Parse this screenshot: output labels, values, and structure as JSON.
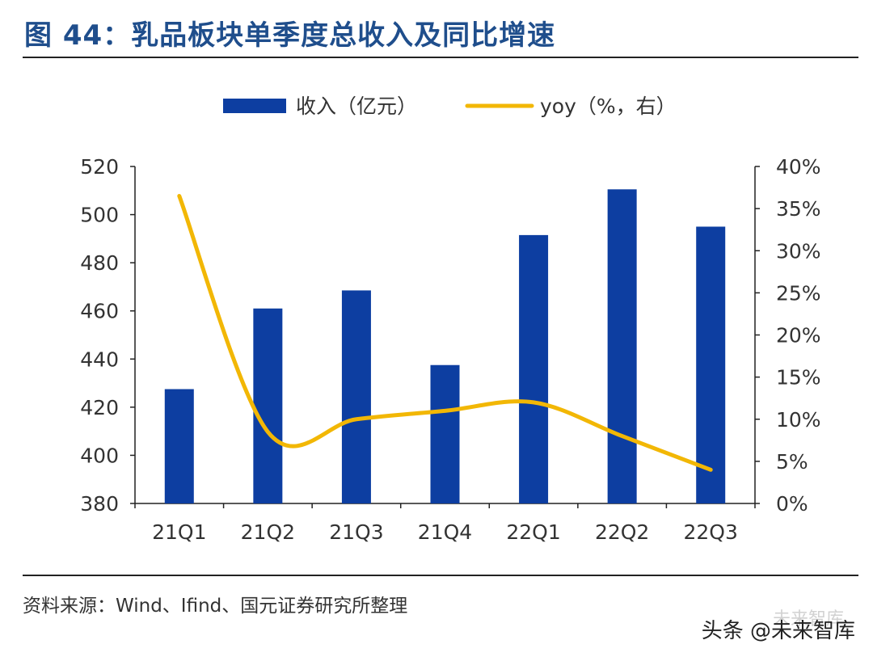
{
  "figure": {
    "title": "图 44：乳品板块单季度总收入及同比增速",
    "source": "资料来源：Wind、Ifind、国元证券研究所整理",
    "watermark_main": "头条 @未来智库",
    "watermark_faint": "未来智库"
  },
  "colors": {
    "bar": "#0d3ea1",
    "line": "#f2b705",
    "title": "#1f4e8c",
    "axis": "#222222"
  },
  "chart_data": {
    "type": "bar+line",
    "title": "乳品板块单季度总收入及同比增速",
    "categories": [
      "21Q1",
      "21Q2",
      "21Q3",
      "21Q4",
      "22Q1",
      "22Q2",
      "22Q3"
    ],
    "series": [
      {
        "name": "收入（亿元）",
        "type": "bar",
        "axis": "left",
        "values": [
          427.5,
          461,
          468.5,
          437.5,
          491.5,
          510.5,
          495
        ]
      },
      {
        "name": "yoy（%，右）",
        "type": "line",
        "axis": "right",
        "values": [
          36.5,
          8.5,
          10,
          11,
          12,
          8,
          4
        ]
      }
    ],
    "y_left": {
      "range": [
        380,
        520
      ],
      "ticks": [
        380,
        400,
        420,
        440,
        460,
        480,
        500,
        520
      ]
    },
    "y_right": {
      "range": [
        0,
        40
      ],
      "ticks": [
        "0%",
        "5%",
        "10%",
        "15%",
        "20%",
        "25%",
        "30%",
        "35%",
        "40%"
      ]
    },
    "legend_position": "top-center",
    "grid": false
  }
}
